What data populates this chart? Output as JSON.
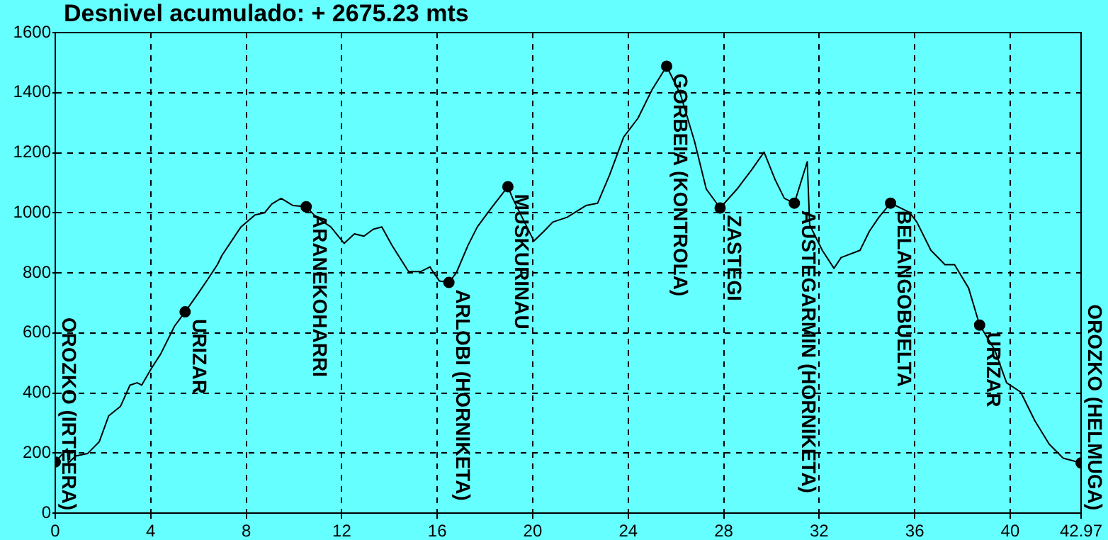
{
  "chart_data": {
    "type": "line",
    "title": "Desnivel acumulado: + 2675.23 mts",
    "xlim": [
      0,
      42.97
    ],
    "xticks": [
      0,
      4,
      8,
      12,
      16,
      20,
      24,
      28,
      32,
      36,
      40,
      42.97
    ],
    "ylim": [
      0,
      1600
    ],
    "yticks": [
      0,
      200,
      400,
      600,
      800,
      1000,
      1200,
      1400,
      1600
    ],
    "grid": true,
    "series": [
      {
        "type": "line",
        "color": "#000000",
        "marker": "none",
        "x": [
          0,
          0.5,
          0.55,
          0.85,
          1.35,
          1.84,
          2.24,
          2.73,
          3.13,
          3.43,
          3.62,
          4.02,
          4.41,
          5.0,
          5.44,
          6.0,
          6.4,
          6.79,
          6.99,
          7.78,
          8.37,
          8.77,
          9.07,
          9.46,
          9.96,
          10.51,
          10.94,
          11.54,
          12.1,
          12.53,
          12.93,
          13.32,
          13.68,
          14.11,
          14.8,
          15.3,
          15.7,
          15.75,
          16.09,
          16.49,
          16.8,
          17.28,
          17.68,
          18.27,
          18.96,
          19.16,
          20.05,
          20.45,
          20.84,
          21.44,
          22.23,
          22.72,
          23.22,
          23.81,
          24.41,
          25.0,
          25.61,
          26.19,
          26.78,
          27.27,
          27.85,
          28.56,
          29.16,
          29.69,
          30.15,
          30.54,
          30.96,
          31.5,
          31.6,
          32.13,
          32.62,
          32.92,
          33.71,
          34.1,
          34.5,
          34.99,
          35.79,
          36.09,
          36.68,
          37.27,
          37.67,
          38.26,
          38.72,
          39.35,
          39.85,
          40.44,
          41.03,
          41.63,
          42.22,
          42.97
        ],
        "values": [
          170,
          214,
          167,
          190,
          198,
          237,
          324,
          355,
          426,
          434,
          426,
          481,
          529,
          623,
          670,
          733,
          780,
          827,
          859,
          953,
          993,
          1000,
          1029,
          1048,
          1024,
          1020,
          985,
          953,
          898,
          930,
          922,
          945,
          953,
          891,
          804,
          804,
          820,
          812,
          773,
          768,
          800,
          890,
          953,
          1016,
          1087,
          1048,
          906,
          937,
          969,
          985,
          1024,
          1032,
          1126,
          1252,
          1315,
          1410,
          1488,
          1394,
          1237,
          1079,
          1016,
          1079,
          1142,
          1202,
          1111,
          1048,
          1032,
          1170,
          960,
          875,
          815,
          851,
          875,
          938,
          985,
          1032,
          1001,
          969,
          875,
          827,
          827,
          749,
          626,
          544,
          434,
          403,
          308,
          230,
          183,
          167
        ]
      },
      {
        "type": "scatter",
        "color": "#000000",
        "marker": "circle",
        "x": [
          0,
          5.44,
          10.51,
          16.49,
          18.96,
          25.61,
          27.85,
          30.96,
          34.99,
          38.72,
          42.97
        ],
        "values": [
          170,
          670,
          1020,
          768,
          1087,
          1488,
          1016,
          1032,
          1032,
          626,
          167
        ]
      }
    ],
    "annotations": [
      {
        "text": "OROZKO (IRTEERA)",
        "x": 0,
        "y": 170
      },
      {
        "text": "URIZAR",
        "x": 5.44,
        "y": 670
      },
      {
        "text": "ARANEKOHARRI",
        "x": 10.51,
        "y": 1020
      },
      {
        "text": "ARLOBI (HORNIKETA)",
        "x": 16.49,
        "y": 768
      },
      {
        "text": "MUSKURINAU",
        "x": 18.96,
        "y": 1087
      },
      {
        "text": "GORBEIA (KONTROLA)",
        "x": 25.61,
        "y": 1488
      },
      {
        "text": "ZASTEGI",
        "x": 27.85,
        "y": 1016
      },
      {
        "text": "AUSTEGARMIN (HORNIKETA)",
        "x": 30.96,
        "y": 1032
      },
      {
        "text": "BELANGOBUELTA",
        "x": 34.99,
        "y": 1032
      },
      {
        "text": "URIZAR",
        "x": 38.72,
        "y": 626
      },
      {
        "text": "OROZKO (HELMUGA)",
        "x": 42.97,
        "y": 167
      }
    ]
  }
}
